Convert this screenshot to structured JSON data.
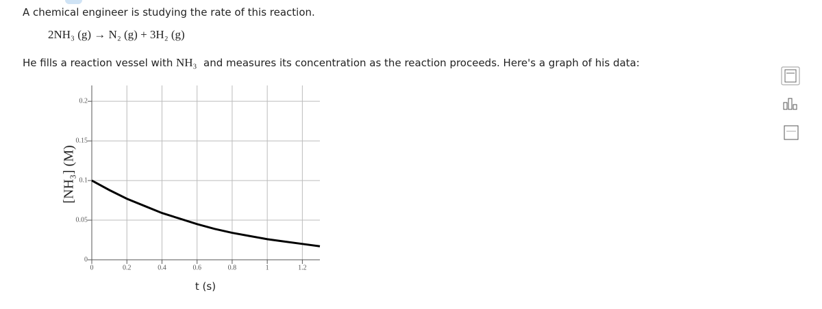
{
  "question": {
    "intro": "A chemical engineer is studying the rate of this reaction.",
    "equation": "2NH₃ (g) → N₂ (g) + 3H₂ (g)",
    "prompt_before": "He fills a reaction vessel with",
    "prompt_species": "NH₃",
    "prompt_after": "and measures its concentration as the reaction proceeds. Here's a graph of his data:"
  },
  "chart_data": {
    "type": "line",
    "x_label": "t (s)",
    "y_label": "[NH₃] (M)",
    "x": [
      0,
      0.1,
      0.2,
      0.3,
      0.4,
      0.5,
      0.6,
      0.7,
      0.8,
      0.9,
      1.0,
      1.1,
      1.2,
      1.3
    ],
    "series": [
      {
        "name": "NH₃",
        "color": "#000000",
        "values": [
          0.1,
          0.088,
          0.077,
          0.068,
          0.059,
          0.052,
          0.045,
          0.039,
          0.034,
          0.03,
          0.026,
          0.023,
          0.02,
          0.017
        ]
      }
    ],
    "xlim": [
      0,
      1.3
    ],
    "ylim": [
      0,
      0.22
    ],
    "xticks": [
      0,
      0.2,
      0.4,
      0.6,
      0.8,
      1,
      1.2
    ],
    "yticks": [
      0,
      0.05,
      0.1,
      0.15,
      0.2
    ],
    "grid": true
  }
}
